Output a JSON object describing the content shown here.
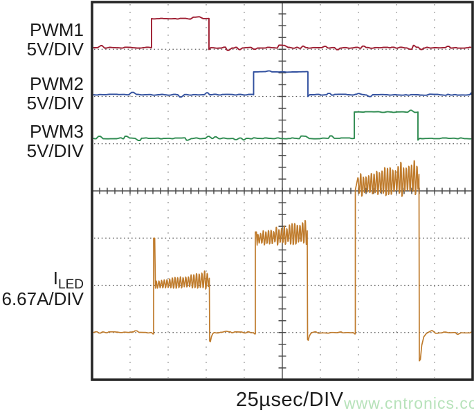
{
  "watermark": {
    "text": "www.cntronics.com",
    "color": "#b7e2ba"
  },
  "grid": {
    "border_color": "#262626",
    "vgrid_dot_color": "#8f8f8f",
    "hgrid_dot_color": "#5d5d5d",
    "axis_color": "#4a4a4a"
  },
  "chart_data": {
    "type": "line",
    "subtype": "oscilloscope",
    "title": "",
    "x_axis": {
      "label": "25µsec/DIV",
      "us_per_div": 25,
      "divisions": 10,
      "total_us": 250
    },
    "y_divisions": 8,
    "series": [
      {
        "label": "PWM1",
        "scale": "5V/DIV",
        "color": "#9e1d31",
        "kind": "digital",
        "low_div": 0.967,
        "high_div": 0.352,
        "pulse": {
          "start_div": 1.564,
          "end_div": 3.073,
          "start_us": 39,
          "end_us": 77
        }
      },
      {
        "label": "PWM2",
        "scale": "5V/DIV",
        "color": "#31509f",
        "kind": "digital",
        "low_div": 1.963,
        "high_div": 1.48,
        "pulse": {
          "start_div": 4.245,
          "end_div": 5.673,
          "start_us": 106,
          "end_us": 142
        }
      },
      {
        "label": "PWM3",
        "scale": "5V/DIV",
        "color": "#2e8b50",
        "kind": "digital",
        "low_div": 2.886,
        "high_div": 2.33,
        "pulse": {
          "start_div": 6.891,
          "end_div": 8.564,
          "start_us": 172,
          "end_us": 214
        }
      },
      {
        "label": "ILED",
        "label_main": "I",
        "label_sub": "LED",
        "scale": "6.67A/DIV",
        "color": "#bf7b2c",
        "kind": "analog",
        "baseline_div": 7.0,
        "pulses": [
          {
            "start_div": 1.618,
            "end_div": 3.082,
            "start_us": 40,
            "end_us": 77,
            "level_a_approx": 6.7,
            "band_center_div": [
              5.99,
              5.9
            ],
            "ripple_amp_div": [
              0.07,
              0.2
            ],
            "ripple_cycles": 20,
            "lead_spike_div": 5.0,
            "undershoot_div": 7.18
          },
          {
            "start_div": 4.291,
            "end_div": 5.655,
            "start_us": 107,
            "end_us": 141,
            "level_a_approx": 13.4,
            "band_center_div": [
              5.02,
              4.9
            ],
            "ripple_amp_div": [
              0.13,
              0.22
            ],
            "ripple_cycles": 19,
            "lead_spike_div": 4.87,
            "undershoot_div": 7.15
          },
          {
            "start_div": 6.918,
            "end_div": 8.591,
            "start_us": 173,
            "end_us": 215,
            "level_a_approx": 21.3,
            "band_center_div": [
              3.9,
              3.74
            ],
            "ripple_amp_div": [
              0.2,
              0.36
            ],
            "ripple_cycles": 23,
            "lead_spike_div": null,
            "undershoot_div": 7.6
          }
        ]
      }
    ]
  }
}
